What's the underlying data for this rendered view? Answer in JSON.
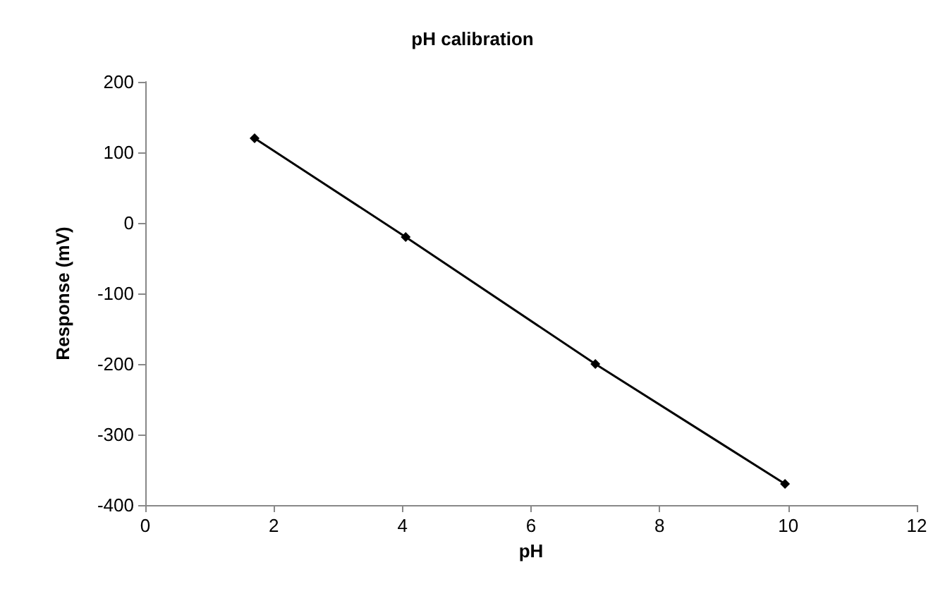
{
  "chart_data": {
    "type": "line",
    "title": "pH calibration",
    "xlabel": "pH",
    "ylabel": "Response (mV)",
    "x": [
      1.7,
      4.05,
      7.0,
      9.95
    ],
    "series": [
      {
        "color": "#000000",
        "values": [
          120,
          -20,
          -200,
          -370
        ]
      }
    ],
    "xlim": [
      0,
      12
    ],
    "xticks": [
      0,
      2,
      4,
      6,
      8,
      10,
      12
    ],
    "ylim": [
      -400,
      200
    ],
    "yticks": [
      -400,
      -300,
      -200,
      -100,
      0,
      100,
      200
    ],
    "grid": false,
    "marker": "diamond",
    "line_style": "solid"
  }
}
